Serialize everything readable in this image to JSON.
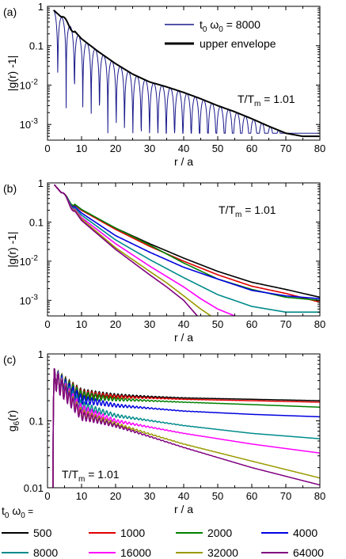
{
  "chart_data": [
    {
      "type": "line",
      "panel_label": "(a)",
      "xlabel": "r / a",
      "ylabel": "|g(r) -1|",
      "xlim": [
        0,
        80
      ],
      "ylim": [
        0.0004,
        1
      ],
      "yscale": "log",
      "x_ticks": [
        0,
        10,
        20,
        30,
        40,
        50,
        60,
        70,
        80
      ],
      "y_tick_labels": [
        "1",
        "0.1",
        "10-2",
        "10-3"
      ],
      "annotation": "T/Tm = 1.01",
      "legend_position": "top-right",
      "series": [
        {
          "name": "t0 ω0 = 8000",
          "color": "#1a1a8c",
          "style": "oscillating",
          "x": [
            1.8,
            5,
            10,
            15,
            20,
            25,
            30,
            35,
            40,
            45,
            50,
            55,
            60,
            65,
            70,
            75,
            80
          ],
          "y": [
            0.8,
            0.45,
            0.15,
            0.07,
            0.035,
            0.019,
            0.012,
            0.009,
            0.0065,
            0.0045,
            0.003,
            0.0021,
            0.0014,
            0.0009,
            0.0006,
            0.0005,
            0.0005
          ]
        },
        {
          "name": "upper envelope",
          "color": "#000000",
          "x": [
            1.8,
            5,
            10,
            15,
            20,
            25,
            30,
            35,
            40,
            45,
            50,
            55,
            60,
            65,
            70,
            75,
            80
          ],
          "y": [
            0.8,
            0.45,
            0.15,
            0.07,
            0.035,
            0.019,
            0.012,
            0.009,
            0.0065,
            0.0045,
            0.003,
            0.0021,
            0.0014,
            0.0009,
            0.0006,
            0.0005,
            0.0005
          ]
        }
      ]
    },
    {
      "type": "line",
      "panel_label": "(b)",
      "xlabel": "r / a",
      "ylabel": "|g(r) -1|",
      "xlim": [
        0,
        80
      ],
      "ylim": [
        0.0004,
        1
      ],
      "yscale": "log",
      "x_ticks": [
        0,
        10,
        20,
        30,
        40,
        50,
        60,
        70,
        80
      ],
      "y_tick_labels": [
        "1",
        "0.1",
        "10-2",
        "10-3"
      ],
      "annotation": "T/Tm = 1.01",
      "series": [
        {
          "name": "500",
          "color": "#000000",
          "x": [
            2,
            5,
            10,
            20,
            30,
            40,
            50,
            60,
            70,
            80
          ],
          "y": [
            0.9,
            0.45,
            0.2,
            0.07,
            0.028,
            0.012,
            0.0055,
            0.0029,
            0.0019,
            0.0012
          ]
        },
        {
          "name": "1000",
          "color": "#e00000",
          "x": [
            2,
            5,
            10,
            20,
            30,
            40,
            50,
            60,
            70,
            80
          ],
          "y": [
            0.9,
            0.45,
            0.2,
            0.065,
            0.024,
            0.01,
            0.0045,
            0.0023,
            0.0015,
            0.0009
          ]
        },
        {
          "name": "2000",
          "color": "#008000",
          "x": [
            2,
            5,
            10,
            20,
            30,
            40,
            50,
            60,
            70,
            80
          ],
          "y": [
            0.9,
            0.45,
            0.21,
            0.07,
            0.026,
            0.009,
            0.0035,
            0.0019,
            0.0012,
            0.001
          ]
        },
        {
          "name": "4000",
          "color": "#0000e0",
          "x": [
            2,
            5,
            10,
            20,
            30,
            40,
            50,
            60,
            70,
            80
          ],
          "y": [
            0.9,
            0.45,
            0.17,
            0.045,
            0.017,
            0.007,
            0.0035,
            0.0018,
            0.0013,
            0.0011
          ]
        },
        {
          "name": "8000",
          "color": "#008b8b",
          "x": [
            2,
            5,
            10,
            20,
            30,
            40,
            50,
            60,
            70,
            80
          ],
          "y": [
            0.9,
            0.45,
            0.15,
            0.035,
            0.011,
            0.0038,
            0.0014,
            0.0007,
            0.0005,
            0.0005
          ]
        },
        {
          "name": "16000",
          "color": "#ff00ff",
          "x": [
            2,
            5,
            10,
            20,
            30,
            40,
            45,
            50,
            55
          ],
          "y": [
            0.9,
            0.45,
            0.13,
            0.028,
            0.0075,
            0.0022,
            0.0011,
            0.0006,
            0.0004
          ]
        },
        {
          "name": "32000",
          "color": "#9a9a00",
          "x": [
            2,
            5,
            10,
            20,
            30,
            35,
            40,
            45,
            48
          ],
          "y": [
            0.9,
            0.45,
            0.12,
            0.022,
            0.0055,
            0.0028,
            0.0013,
            0.0006,
            0.0004
          ]
        },
        {
          "name": "64000",
          "color": "#800080",
          "x": [
            2,
            5,
            10,
            20,
            30,
            35,
            40,
            44
          ],
          "y": [
            0.9,
            0.45,
            0.11,
            0.02,
            0.0045,
            0.0022,
            0.001,
            0.0004
          ]
        }
      ]
    },
    {
      "type": "line",
      "panel_label": "(c)",
      "xlabel": "r / a",
      "ylabel": "g6(r)",
      "xlim": [
        0,
        80
      ],
      "ylim": [
        0.01,
        1
      ],
      "yscale": "log",
      "x_ticks": [
        0,
        10,
        20,
        30,
        40,
        50,
        60,
        70,
        80
      ],
      "y_tick_labels": [
        "1",
        "0.1",
        "0.01"
      ],
      "annotation": "T/Tm = 1.01",
      "series": [
        {
          "name": "500",
          "color": "#000000",
          "start": 0.4,
          "x": [
            2,
            10,
            20,
            40,
            60,
            80
          ],
          "y": [
            0.45,
            0.26,
            0.24,
            0.22,
            0.21,
            0.2
          ]
        },
        {
          "name": "1000",
          "color": "#e00000",
          "start": 0.4,
          "x": [
            2,
            10,
            20,
            40,
            60,
            80
          ],
          "y": [
            0.45,
            0.25,
            0.23,
            0.21,
            0.2,
            0.19
          ]
        },
        {
          "name": "2000",
          "color": "#008000",
          "start": 0.4,
          "x": [
            2,
            10,
            20,
            40,
            60,
            80
          ],
          "y": [
            0.45,
            0.24,
            0.21,
            0.19,
            0.175,
            0.16
          ]
        },
        {
          "name": "4000",
          "color": "#0000e0",
          "start": 0.4,
          "x": [
            2,
            10,
            20,
            40,
            60,
            80
          ],
          "y": [
            0.45,
            0.21,
            0.17,
            0.14,
            0.125,
            0.115
          ]
        },
        {
          "name": "8000",
          "color": "#008b8b",
          "start": 0.4,
          "x": [
            2,
            10,
            20,
            40,
            60,
            80
          ],
          "y": [
            0.45,
            0.17,
            0.12,
            0.085,
            0.065,
            0.054
          ]
        },
        {
          "name": "16000",
          "color": "#ff00ff",
          "start": 0.4,
          "x": [
            2,
            10,
            20,
            40,
            60,
            80
          ],
          "y": [
            0.45,
            0.15,
            0.1,
            0.065,
            0.045,
            0.033
          ]
        },
        {
          "name": "32000",
          "color": "#9a9a00",
          "start": 0.4,
          "x": [
            2,
            10,
            20,
            40,
            60,
            80
          ],
          "y": [
            0.45,
            0.13,
            0.09,
            0.045,
            0.025,
            0.014
          ]
        },
        {
          "name": "64000",
          "color": "#800080",
          "start": 0.4,
          "x": [
            2,
            10,
            20,
            40,
            60,
            80
          ],
          "y": [
            0.45,
            0.12,
            0.085,
            0.04,
            0.02,
            0.011
          ]
        }
      ]
    }
  ],
  "legend": {
    "title": "t0 ω0 =",
    "items": [
      {
        "label": "500",
        "color": "#000000"
      },
      {
        "label": "1000",
        "color": "#e00000"
      },
      {
        "label": "2000",
        "color": "#008000"
      },
      {
        "label": "4000",
        "color": "#0000e0"
      },
      {
        "label": "8000",
        "color": "#008b8b"
      },
      {
        "label": "16000",
        "color": "#ff00ff"
      },
      {
        "label": "32000",
        "color": "#9a9a00"
      },
      {
        "label": "64000",
        "color": "#800080"
      }
    ]
  }
}
